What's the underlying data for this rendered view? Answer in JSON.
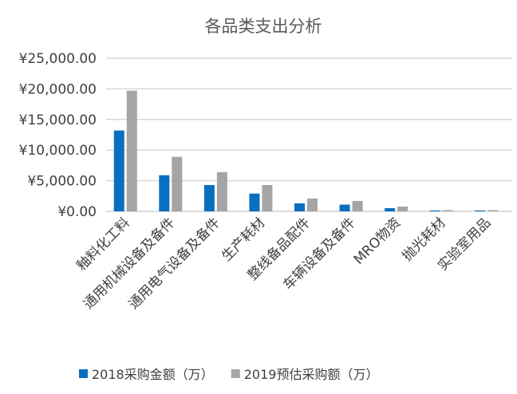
{
  "chart_data": {
    "type": "bar",
    "title": "各品类支出分析",
    "xlabel": "",
    "ylabel": "",
    "ylim": [
      0,
      25000
    ],
    "yticks": [
      "¥0.00",
      "¥5,000.00",
      "¥10,000.00",
      "¥15,000.00",
      "¥20,000.00",
      "¥25,000.00"
    ],
    "grid": true,
    "legend_position": "bottom",
    "categories": [
      "釉料化工料",
      "通用机械设备及备件",
      "通用电气设备及备件",
      "生产耗材",
      "整线备品配件",
      "车辆设备及备件",
      "MRO物资",
      "抛光耗材",
      "实验室用品"
    ],
    "series": [
      {
        "name": "2018采购金额（万）",
        "color": "#0b6fbf",
        "values": [
          13200,
          5900,
          4300,
          2900,
          1300,
          1100,
          520,
          150,
          150
        ]
      },
      {
        "name": "2019预估采购额（万）",
        "color": "#a5a5a5",
        "values": [
          19700,
          8900,
          6400,
          4300,
          2100,
          1700,
          780,
          200,
          200
        ]
      }
    ]
  }
}
